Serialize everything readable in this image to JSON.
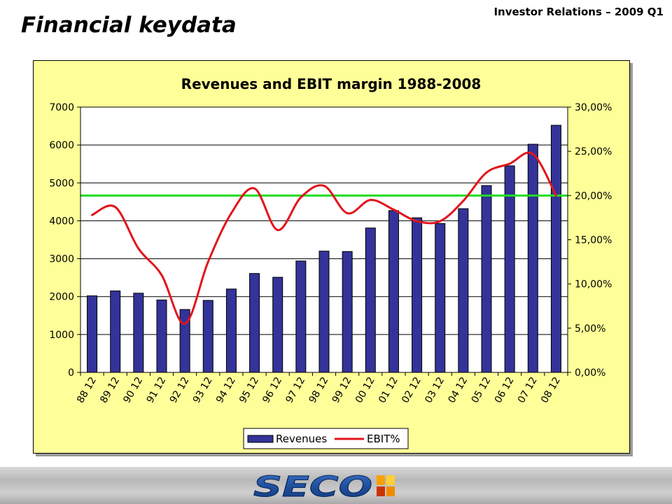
{
  "header": {
    "title": "Financial keydata",
    "tag": "Investor Relations – 2009 Q1"
  },
  "logo": {
    "text": "SECO"
  },
  "chart_data": {
    "type": "bar",
    "title": "Revenues and EBIT margin 1988-2008",
    "categories": [
      "88 12",
      "89 12",
      "90 12",
      "91 12",
      "92 12",
      "93 12",
      "94 12",
      "95 12",
      "96 12",
      "97 12",
      "98 12",
      "99 12",
      "00 12",
      "01 12",
      "02 12",
      "03 12",
      "04 12",
      "05 12",
      "06 12",
      "07 12",
      "08 12"
    ],
    "series": [
      {
        "name": "Revenues",
        "type": "bar",
        "axis": "left",
        "color": "#333399",
        "values": [
          2020,
          2150,
          2090,
          1910,
          1660,
          1900,
          2200,
          2610,
          2510,
          2940,
          3200,
          3190,
          3810,
          4270,
          4080,
          3930,
          4320,
          4930,
          5450,
          6020,
          6520
        ]
      },
      {
        "name": "EBIT%",
        "type": "line",
        "axis": "right",
        "color": "#e3141b",
        "values": [
          17.8,
          18.7,
          14.0,
          11.0,
          5.5,
          12.5,
          18.0,
          20.8,
          16.1,
          19.8,
          21.1,
          18.0,
          19.5,
          18.4,
          17.1,
          17.1,
          19.4,
          22.6,
          23.6,
          24.7,
          20.0
        ]
      }
    ],
    "reference_line": {
      "value": 20.0,
      "axis": "right",
      "color": "#22dd22"
    },
    "y_left": {
      "min": 0,
      "max": 7000,
      "ticks": [
        "0",
        "1000",
        "2000",
        "3000",
        "4000",
        "5000",
        "6000",
        "7000"
      ]
    },
    "y_right": {
      "min": 0,
      "max": 30,
      "ticks": [
        "0,00%",
        "5,00%",
        "10,00%",
        "15,00%",
        "20,00%",
        "25,00%",
        "30,00%"
      ]
    },
    "grid": true,
    "legend_position": "bottom",
    "background": "#ffff99"
  }
}
